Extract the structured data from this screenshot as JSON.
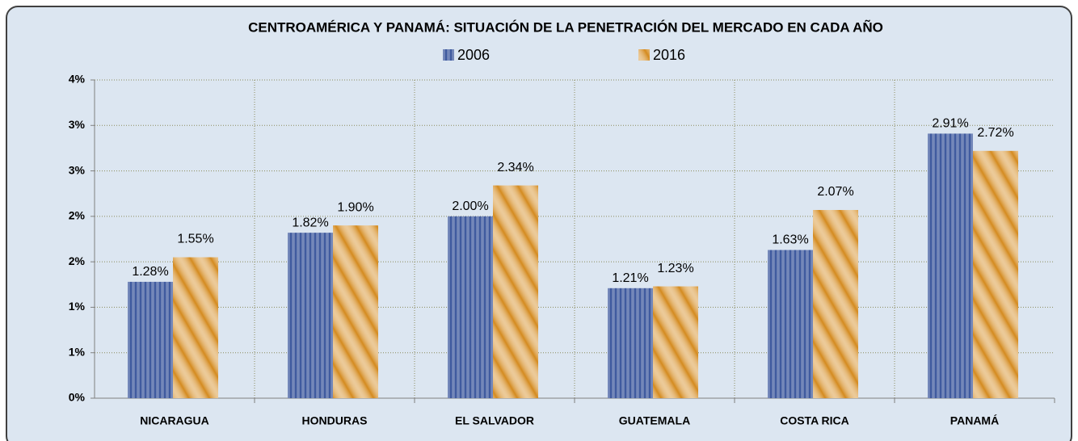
{
  "chart_data": {
    "type": "bar",
    "title": "CENTROAMÉRICA Y PANAMÁ: SITUACIÓN DE LA PENETRACIÓN DEL MERCADO EN CADA AÑO",
    "categories": [
      "NICARAGUA",
      "HONDURAS",
      "EL SALVADOR",
      "GUATEMALA",
      "COSTA RICA",
      "PANAMÁ"
    ],
    "series": [
      {
        "name": "2006",
        "color": "#1f3f8f",
        "values": [
          1.28,
          1.82,
          2.0,
          1.21,
          1.63,
          2.91
        ],
        "value_labels": [
          "1.28%",
          "1.82%",
          "2.00%",
          "1.21%",
          "1.63%",
          "2.91%"
        ]
      },
      {
        "name": "2016",
        "color": "#d48a1e",
        "values": [
          1.55,
          1.9,
          2.34,
          1.23,
          2.07,
          2.72
        ],
        "value_labels": [
          "1.55%",
          "1.90%",
          "2.34%",
          "1.23%",
          "2.07%",
          "2.72%"
        ]
      }
    ],
    "ylim": [
      0,
      3.5
    ],
    "yticks": [
      {
        "value": 0,
        "label": "0%"
      },
      {
        "value": 0.5,
        "label": "1%"
      },
      {
        "value": 1,
        "label": "1%"
      },
      {
        "value": 1.5,
        "label": "2%"
      },
      {
        "value": 2,
        "label": "2%"
      },
      {
        "value": 2.5,
        "label": "3%"
      },
      {
        "value": 3,
        "label": "3%"
      },
      {
        "value": 3.5,
        "label": "4%"
      }
    ],
    "grid": true,
    "legend": "top"
  }
}
